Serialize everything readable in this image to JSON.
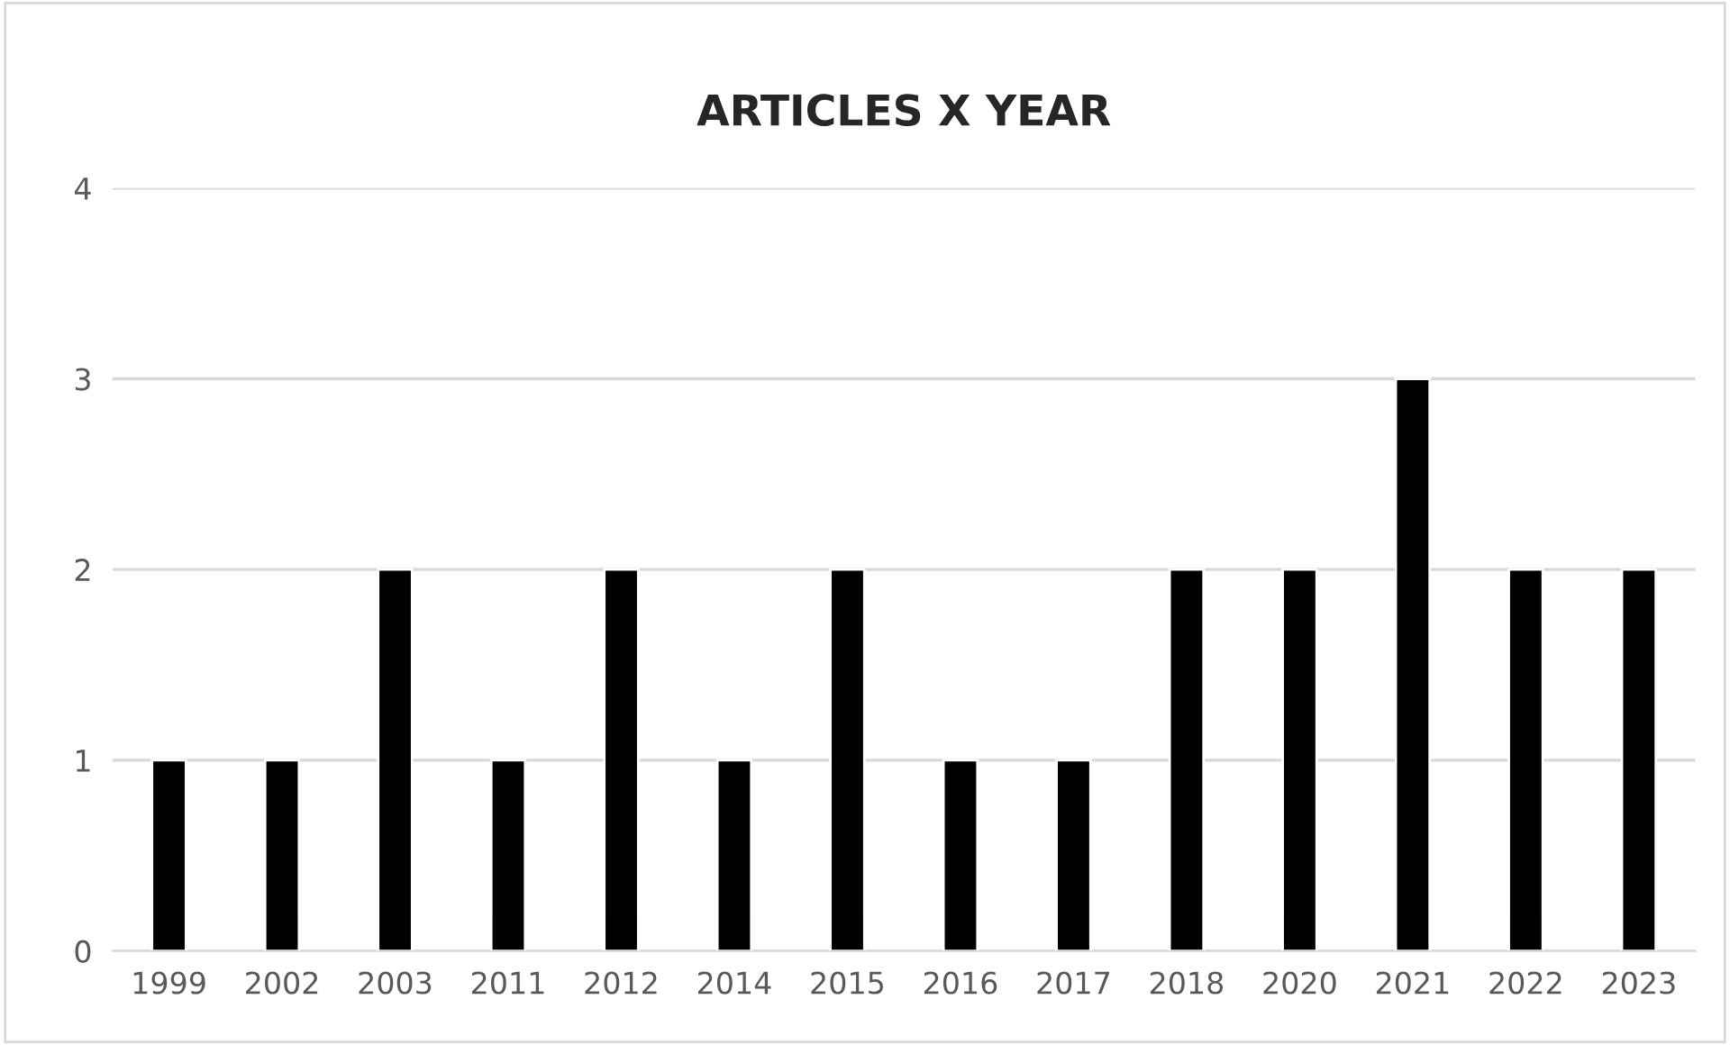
{
  "chart_data": {
    "type": "bar",
    "title": "ARTICLES X YEAR",
    "categories": [
      "1999",
      "2002",
      "2003",
      "2011",
      "2012",
      "2014",
      "2015",
      "2016",
      "2017",
      "2018",
      "2020",
      "2021",
      "2022",
      "2023"
    ],
    "values": [
      1,
      1,
      2,
      1,
      2,
      1,
      2,
      1,
      1,
      2,
      2,
      3,
      2,
      2
    ],
    "color": "#000000",
    "ylim": [
      0,
      4
    ],
    "yticks": [
      0,
      1,
      2,
      3,
      4
    ],
    "grid": "y"
  }
}
